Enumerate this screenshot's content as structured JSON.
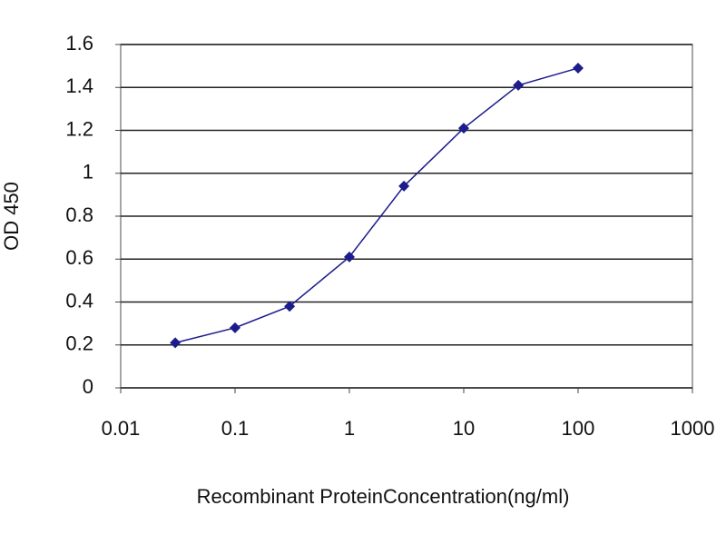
{
  "chart_data": {
    "type": "line",
    "x_label": "Recombinant ProteinConcentration(ng/ml)",
    "y_label": "OD 450",
    "x": [
      0.03,
      0.1,
      0.3,
      1,
      3,
      10,
      30,
      100
    ],
    "series": [
      {
        "color": "#1c1c8c",
        "values": [
          0.21,
          0.28,
          0.38,
          0.61,
          0.94,
          1.21,
          1.41,
          1.49
        ]
      }
    ],
    "xscale": "log",
    "xlim": [
      0.01,
      1000
    ],
    "xticks": [
      0.01,
      0.1,
      1,
      10,
      100,
      1000
    ],
    "ylim": [
      0,
      1.6
    ],
    "yticks": [
      0,
      0.2,
      0.4,
      0.6,
      0.8,
      1,
      1.2,
      1.4,
      1.6
    ],
    "grid": true
  }
}
